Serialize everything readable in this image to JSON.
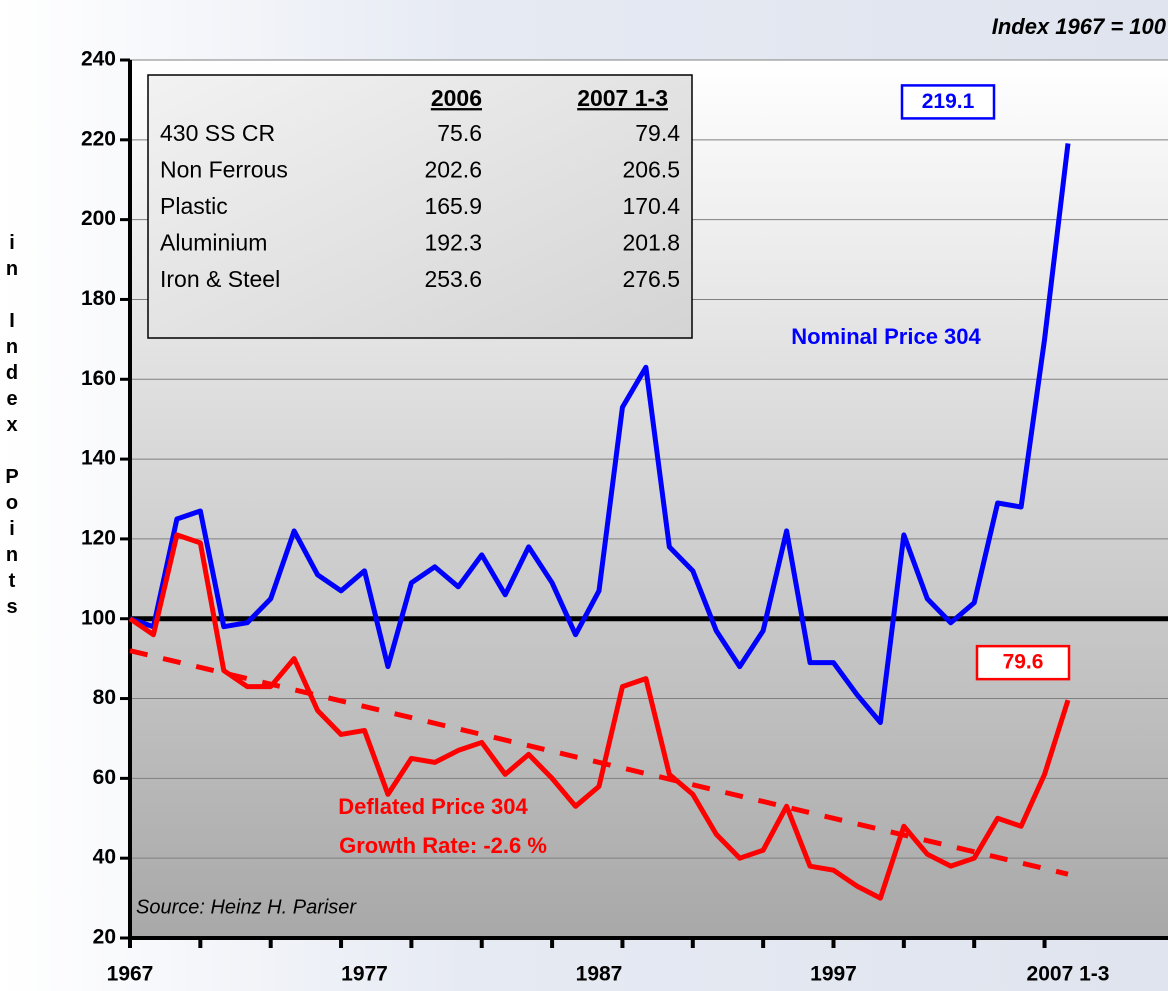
{
  "chart_data": {
    "type": "line",
    "subtitle": "Index 1967 = 100",
    "y_label": "in Index Points",
    "source": "Source: Heinz H. Pariser",
    "categories": [
      "1967",
      null,
      null,
      null,
      null,
      null,
      null,
      null,
      null,
      null,
      "1977",
      null,
      null,
      null,
      null,
      null,
      null,
      null,
      null,
      null,
      "1987",
      null,
      null,
      null,
      null,
      null,
      null,
      null,
      null,
      null,
      "1997",
      null,
      null,
      null,
      null,
      null,
      null,
      null,
      null,
      null,
      "2007 1-3"
    ],
    "series": [
      {
        "name": "Nominal Price 304",
        "color": "#0000ff",
        "values": [
          100,
          98,
          125,
          127,
          98,
          99,
          105,
          122,
          111,
          107,
          112,
          88,
          109,
          113,
          108,
          116,
          106,
          118,
          109,
          96,
          107,
          153,
          163,
          118,
          112,
          97,
          88,
          97,
          122,
          89,
          89,
          81,
          74,
          121,
          105,
          99,
          104,
          129,
          128,
          170,
          219.1
        ]
      },
      {
        "name": "Deflated Price 304",
        "color": "#ff0000",
        "values": [
          100,
          96,
          121,
          119,
          87,
          83,
          83,
          90,
          77,
          71,
          72,
          56,
          65,
          64,
          67,
          69,
          61,
          66,
          60,
          53,
          58,
          83,
          85,
          61,
          56,
          46,
          40,
          42,
          53,
          38,
          37,
          33,
          30,
          48,
          41,
          38,
          40,
          50,
          48,
          61,
          79.6
        ]
      }
    ],
    "annotation": "Growth Rate: -2.6 %",
    "trend": {
      "x": [
        1967,
        2007
      ],
      "values": [
        92,
        36
      ],
      "color": "#ff0000"
    },
    "reference": 100,
    "ylim": [
      20,
      240
    ],
    "yticks": [
      20,
      40,
      60,
      80,
      100,
      120,
      140,
      160,
      180,
      200,
      220,
      240
    ],
    "grid": true,
    "table": {
      "columns": [
        "2006",
        "2007 1-3"
      ],
      "rows": [
        [
          "430 SS CR",
          75.6,
          79.4
        ],
        [
          "Non Ferrous",
          202.6,
          206.5
        ],
        [
          "Plastic",
          165.9,
          170.4
        ],
        [
          "Aluminium",
          192.3,
          201.8
        ],
        [
          "Iron & Steel",
          253.6,
          276.5
        ]
      ]
    }
  }
}
